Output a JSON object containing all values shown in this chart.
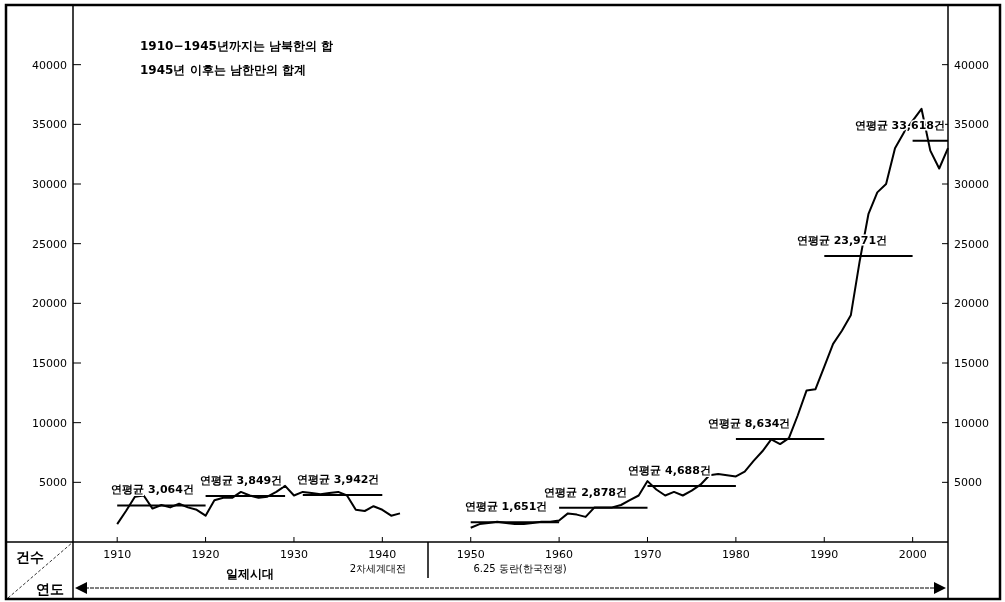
{
  "chart_data": {
    "type": "line",
    "ylabel": "건수",
    "xlabel": "연도",
    "annotations": [
      "1910−1945년까지는 남북한의 합",
      "1945년 이후는 남한만의 합계",
      "일제시대",
      "2차세계대전",
      "6.25 동란(한국전쟁)",
      {
        "text": "연평균 3,064건",
        "x": 1914,
        "y": 3064
      },
      {
        "text": "연평균 3,849건",
        "x": 1924,
        "y": 3849
      },
      {
        "text": "연평균 3,942건",
        "x": 1935,
        "y": 3942
      },
      {
        "text": "연평균 1,651건",
        "x": 1954,
        "y": 1651
      },
      {
        "text": "연평균 2,878건",
        "x": 1963,
        "y": 2878
      },
      {
        "text": "연평균 4,688건",
        "x": 1972.5,
        "y": 4688
      },
      {
        "text": "연평균 8,634건",
        "x": 1981.5,
        "y": 8634
      },
      {
        "text": "연평균 23,971건",
        "x": 1992,
        "y": 23971
      },
      {
        "text": "연평균 33,618건",
        "x": 2002,
        "y": 33618
      }
    ],
    "xlim": [
      1905,
      2004
    ],
    "ylim": [
      0,
      45000
    ],
    "xticks": [
      1910,
      1920,
      1930,
      1940,
      1950,
      1960,
      1970,
      1980,
      1990,
      2000
    ],
    "yticks": [
      5000,
      10000,
      15000,
      20000,
      25000,
      30000,
      35000,
      40000
    ],
    "y2lim": [
      0,
      45000
    ],
    "y2ticks": [
      5000,
      10000,
      15000,
      20000,
      25000,
      30000,
      35000,
      40000
    ],
    "series": [
      {
        "color": "#000000",
        "x": [
          1910,
          1911,
          1912,
          1913,
          1914,
          1915,
          1916,
          1917,
          1918,
          1919,
          1920,
          1921,
          1922,
          1923,
          1924,
          1925,
          1926,
          1927,
          1928,
          1929,
          1930,
          1931,
          1932,
          1933,
          1934,
          1935,
          1936,
          1937,
          1938,
          1939,
          1940,
          1941,
          1942
        ],
        "values": [
          1500,
          2600,
          3800,
          3900,
          2800,
          3100,
          2900,
          3200,
          2900,
          2700,
          2200,
          3500,
          3700,
          3700,
          4200,
          3900,
          3700,
          3800,
          4200,
          4700,
          3900,
          4200,
          4100,
          4000,
          4100,
          4200,
          3900,
          2700,
          2600,
          3000,
          2700,
          2200,
          2400
        ]
      },
      {
        "color": "#000000",
        "x": [
          1950,
          1951,
          1952,
          1953,
          1954,
          1955,
          1956,
          1957,
          1958,
          1959,
          1960,
          1961,
          1962,
          1963,
          1964,
          1965,
          1966,
          1967,
          1968,
          1969,
          1970,
          1971,
          1972,
          1973,
          1974,
          1975,
          1976,
          1977,
          1978,
          1979,
          1980,
          1981,
          1982,
          1983,
          1984,
          1985,
          1986,
          1987,
          1988,
          1989,
          1990,
          1991,
          1992,
          1993,
          1994,
          1995,
          1996,
          1997,
          1998,
          1999,
          2000,
          2001,
          2002,
          2003,
          2004
        ],
        "values": [
          1200,
          1500,
          1600,
          1700,
          1600,
          1500,
          1500,
          1600,
          1700,
          1700,
          1800,
          2400,
          2300,
          2100,
          2900,
          2900,
          2900,
          3100,
          3500,
          3900,
          5100,
          4400,
          3900,
          4200,
          3900,
          4300,
          4800,
          5600,
          5700,
          5600,
          5500,
          5900,
          6800,
          7600,
          8600,
          8200,
          8700,
          10600,
          12700,
          12800,
          14700,
          16600,
          17700,
          19000,
          23500,
          27500,
          29300,
          30000,
          33000,
          34300,
          35300,
          36300,
          32800,
          31300,
          33000
        ]
      },
      {
        "type": "line",
        "color": "#000000",
        "x": [
          1910,
          1920
        ],
        "values": [
          3064,
          3064
        ]
      },
      {
        "type": "line",
        "color": "#000000",
        "x": [
          1920,
          1929
        ],
        "values": [
          3849,
          3849
        ]
      },
      {
        "type": "line",
        "color": "#000000",
        "x": [
          1931,
          1940
        ],
        "values": [
          3942,
          3942
        ]
      },
      {
        "type": "line",
        "color": "#000000",
        "x": [
          1950,
          1960
        ],
        "values": [
          1651,
          1651
        ]
      },
      {
        "type": "line",
        "color": "#000000",
        "x": [
          1960,
          1970
        ],
        "values": [
          2878,
          2878
        ]
      },
      {
        "type": "line",
        "color": "#000000",
        "x": [
          1970,
          1980
        ],
        "values": [
          4688,
          4688
        ]
      },
      {
        "type": "line",
        "color": "#000000",
        "x": [
          1980,
          1990
        ],
        "values": [
          8634,
          8634
        ]
      },
      {
        "type": "line",
        "color": "#000000",
        "x": [
          1990,
          2000
        ],
        "values": [
          23971,
          23971
        ]
      },
      {
        "type": "line",
        "color": "#000000",
        "x": [
          2000,
          2004
        ],
        "values": [
          33618,
          33618
        ]
      }
    ]
  }
}
